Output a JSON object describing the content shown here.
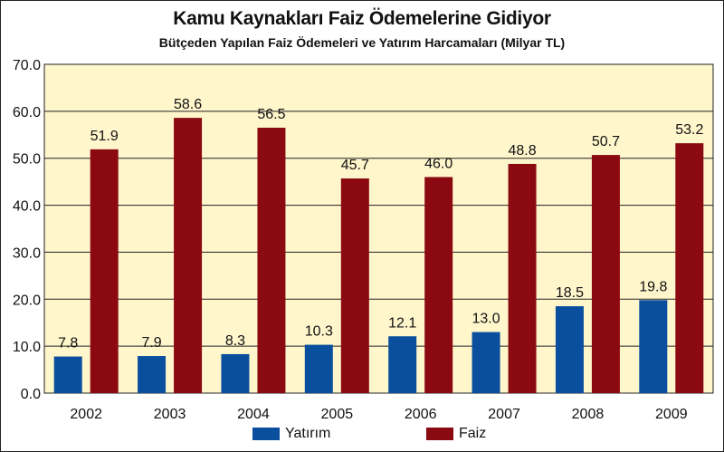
{
  "title": "Kamu Kaynakları Faiz Ödemelerine Gidiyor",
  "subtitle": "Bütçeden Yapılan Faiz Ödemeleri ve Yatırım Harcamaları (Milyar TL)",
  "chart_data": {
    "type": "bar",
    "title": "Kamu Kaynakları Faiz Ödemelerine Gidiyor",
    "subtitle": "Bütçeden Yapılan Faiz Ödemeleri ve Yatırım Harcamaları (Milyar TL)",
    "categories": [
      "2002",
      "2003",
      "2004",
      "2005",
      "2006",
      "2007",
      "2008",
      "2009"
    ],
    "series": [
      {
        "name": "Yatırım",
        "color": "#0a4f9e",
        "values": [
          7.8,
          7.9,
          8.3,
          10.3,
          12.1,
          13.0,
          18.5,
          19.8
        ]
      },
      {
        "name": "Faiz",
        "color": "#8b0a12",
        "values": [
          51.9,
          58.6,
          56.5,
          45.7,
          46.0,
          48.8,
          50.7,
          53.2
        ]
      }
    ],
    "value_labels": [
      [
        "7.8",
        "7.9",
        "8.3",
        "10.3",
        "12.1",
        "13.0",
        "18.5",
        "19.8"
      ],
      [
        "51.9",
        "58.6",
        "56.5",
        "45.7",
        "46.0",
        "48.8",
        "50.7",
        "53.2"
      ]
    ],
    "yticks": [
      "0.0",
      "10.0",
      "20.0",
      "30.0",
      "40.0",
      "50.0",
      "60.0",
      "70.0"
    ],
    "ylim": [
      0,
      70
    ],
    "grid": true,
    "legend_position": "bottom",
    "plot_background": "#fff6cc"
  }
}
